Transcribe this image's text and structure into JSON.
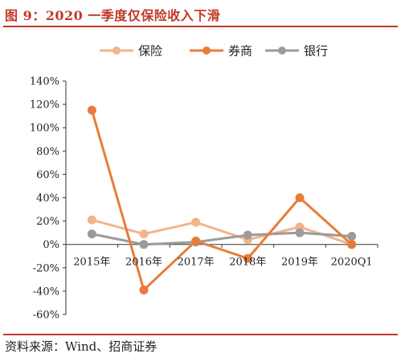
{
  "figure": {
    "title": "图 9：2020 一季度仅保险收入下滑",
    "source": "资料来源：Wind、招商证券"
  },
  "chart_data": {
    "type": "line",
    "title": "图 9：2020 一季度仅保险收入下滑",
    "xlabel": "",
    "ylabel": "",
    "categories": [
      "2015年",
      "2016年",
      "2017年",
      "2018年",
      "2019年",
      "2020Q1"
    ],
    "ylim": [
      -60,
      140
    ],
    "yticks": [
      -60,
      -40,
      -20,
      0,
      20,
      40,
      60,
      80,
      100,
      120,
      140
    ],
    "ytick_labels": [
      "-60%",
      "-40%",
      "-20%",
      "0%",
      "20%",
      "40%",
      "60%",
      "80%",
      "100%",
      "120%",
      "140%"
    ],
    "grid": false,
    "legend_position": "top",
    "series": [
      {
        "name": "保险",
        "color": "#f2b48c",
        "values": [
          21,
          9,
          19,
          4,
          15,
          0
        ]
      },
      {
        "name": "券商",
        "color": "#e97b3a",
        "values": [
          115,
          -39,
          3,
          -12,
          40,
          0
        ]
      },
      {
        "name": "银行",
        "color": "#9b9b9b",
        "values": [
          9,
          0,
          2,
          8,
          10,
          7
        ]
      }
    ]
  }
}
